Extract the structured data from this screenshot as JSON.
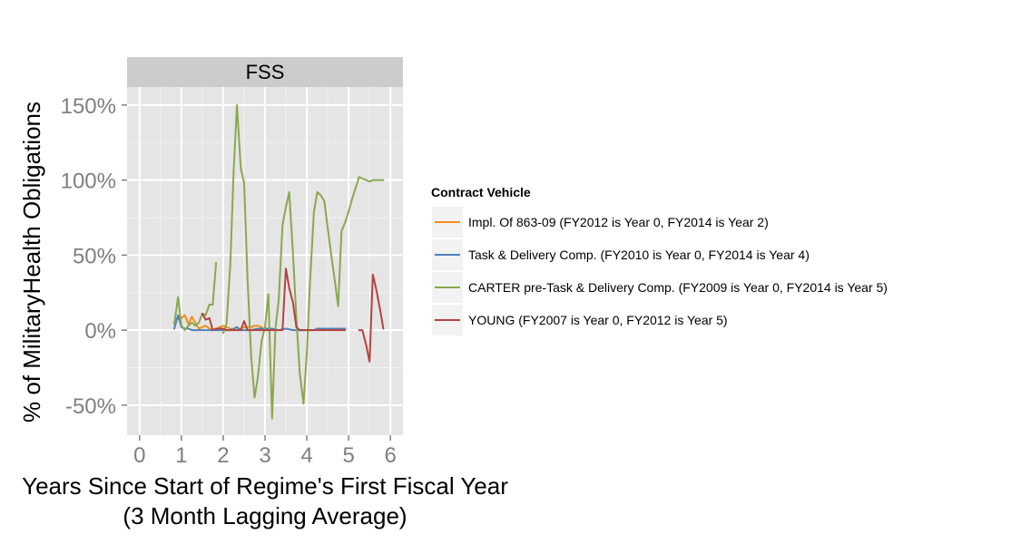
{
  "chart_data": {
    "type": "line",
    "facet": "FSS",
    "xlabel": "Years Since Start of Regime's First Fiscal Year",
    "xlabel_sub": "(3 Month Lagging Average)",
    "ylabel": "% of MilitaryHealth Obligations",
    "xlim": [
      -0.3,
      6.3
    ],
    "ylim": [
      -70,
      162
    ],
    "x_ticks": [
      0,
      1,
      2,
      3,
      4,
      5,
      6
    ],
    "y_ticks": [
      -50,
      0,
      50,
      100,
      150
    ],
    "y_tick_labels": [
      "-50%",
      "0%",
      "50%",
      "100%",
      "150%"
    ],
    "grid": true,
    "legend": {
      "title": "Contract Vehicle",
      "position": "right"
    },
    "series": [
      {
        "name": "Impl. Of 863-09 (FY2012 is Year 0, FY2014 is Year 2)",
        "color": "#f28e1c",
        "segments": [
          [
            [
              0.83,
              5
            ],
            [
              0.92,
              8
            ],
            [
              1.0,
              8
            ],
            [
              1.08,
              10
            ],
            [
              1.17,
              4
            ],
            [
              1.25,
              9
            ],
            [
              1.33,
              5
            ],
            [
              1.42,
              1
            ],
            [
              1.5,
              2
            ],
            [
              1.58,
              3
            ],
            [
              1.67,
              1
            ],
            [
              1.75,
              0
            ],
            [
              1.83,
              1
            ],
            [
              1.92,
              2
            ],
            [
              2.0,
              3
            ],
            [
              2.08,
              2
            ],
            [
              2.17,
              1
            ],
            [
              2.25,
              0
            ],
            [
              2.33,
              0
            ],
            [
              2.42,
              1
            ],
            [
              2.5,
              2
            ],
            [
              2.58,
              2
            ],
            [
              2.67,
              2
            ],
            [
              2.75,
              3
            ],
            [
              2.83,
              3
            ],
            [
              2.92,
              2
            ]
          ]
        ]
      },
      {
        "name": "Task & Delivery Comp. (FY2010 is Year 0, FY2014 is Year 4)",
        "color": "#4f81bd",
        "segments": [
          [
            [
              0.83,
              1
            ],
            [
              0.92,
              10
            ],
            [
              1.0,
              2
            ],
            [
              1.08,
              1
            ],
            [
              1.17,
              1
            ],
            [
              1.25,
              0
            ],
            [
              1.33,
              0
            ],
            [
              1.5,
              0
            ],
            [
              1.67,
              0
            ],
            [
              1.83,
              0
            ],
            [
              2.0,
              0
            ],
            [
              2.17,
              0
            ],
            [
              2.25,
              1
            ],
            [
              2.33,
              2
            ],
            [
              2.42,
              0
            ],
            [
              2.5,
              0
            ],
            [
              2.67,
              0
            ],
            [
              2.83,
              1
            ],
            [
              3.0,
              1
            ],
            [
              3.17,
              1
            ],
            [
              3.33,
              0
            ],
            [
              3.5,
              1
            ],
            [
              3.67,
              0
            ],
            [
              3.83,
              0
            ],
            [
              4.0,
              0
            ],
            [
              4.17,
              0
            ],
            [
              4.25,
              1
            ],
            [
              4.33,
              1
            ],
            [
              4.5,
              1
            ],
            [
              4.67,
              1
            ],
            [
              4.83,
              1
            ],
            [
              4.92,
              1
            ]
          ]
        ]
      },
      {
        "name": "CARTER pre-Task & Delivery Comp. (FY2009 is Year 0, FY2014 is Year 5)",
        "color": "#8aa750",
        "segments": [
          [
            [
              0.83,
              4
            ],
            [
              0.92,
              22
            ],
            [
              1.0,
              3
            ],
            [
              1.08,
              0
            ],
            [
              1.17,
              3
            ],
            [
              1.25,
              5
            ],
            [
              1.33,
              3
            ],
            [
              1.42,
              5
            ],
            [
              1.5,
              11
            ],
            [
              1.58,
              10
            ],
            [
              1.67,
              17
            ],
            [
              1.75,
              17
            ],
            [
              1.83,
              45
            ]
          ],
          [
            [
              2.0,
              -2
            ],
            [
              2.08,
              4
            ],
            [
              2.17,
              44
            ],
            [
              2.25,
              107
            ],
            [
              2.33,
              150
            ],
            [
              2.42,
              108
            ],
            [
              2.5,
              98
            ],
            [
              2.58,
              35
            ],
            [
              2.67,
              -18
            ],
            [
              2.75,
              -45
            ],
            [
              2.83,
              -31
            ],
            [
              2.92,
              -7
            ],
            [
              3.0,
              2
            ],
            [
              3.08,
              24
            ],
            [
              3.17,
              -59
            ],
            [
              3.25,
              1
            ],
            [
              3.33,
              21
            ],
            [
              3.42,
              70
            ],
            [
              3.5,
              82
            ],
            [
              3.58,
              92
            ],
            [
              3.67,
              50
            ],
            [
              3.75,
              9
            ],
            [
              3.83,
              -28
            ],
            [
              3.92,
              -49
            ],
            [
              4.0,
              -15
            ],
            [
              4.08,
              33
            ],
            [
              4.17,
              79
            ],
            [
              4.25,
              92
            ],
            [
              4.33,
              90
            ],
            [
              4.42,
              86
            ],
            [
              4.5,
              68
            ],
            [
              4.58,
              51
            ],
            [
              4.67,
              33
            ],
            [
              4.75,
              16
            ],
            [
              4.83,
              66
            ],
            [
              4.92,
              72
            ],
            [
              5.0,
              79
            ],
            [
              5.08,
              87
            ],
            [
              5.17,
              95
            ],
            [
              5.25,
              102
            ],
            [
              5.33,
              101
            ],
            [
              5.42,
              100
            ],
            [
              5.5,
              99
            ],
            [
              5.58,
              100
            ],
            [
              5.67,
              100
            ],
            [
              5.75,
              100
            ],
            [
              5.83,
              100
            ]
          ]
        ]
      },
      {
        "name": "YOUNG (FY2007 is Year 0, FY2012 is Year 5)",
        "color": "#b4433c",
        "segments": [
          [
            [
              1.5,
              11
            ],
            [
              1.58,
              7
            ],
            [
              1.67,
              8
            ],
            [
              1.75,
              0
            ],
            [
              1.83,
              1
            ],
            [
              1.92,
              1
            ],
            [
              2.0,
              1
            ],
            [
              2.08,
              0
            ],
            [
              2.17,
              0
            ],
            [
              2.25,
              0
            ],
            [
              2.33,
              0
            ],
            [
              2.42,
              0
            ],
            [
              2.5,
              6
            ],
            [
              2.58,
              0
            ],
            [
              2.67,
              0
            ],
            [
              2.75,
              0
            ],
            [
              2.83,
              0
            ],
            [
              3.0,
              0
            ],
            [
              3.17,
              0
            ],
            [
              3.33,
              0
            ],
            [
              3.42,
              0
            ],
            [
              3.5,
              41
            ],
            [
              3.58,
              28
            ],
            [
              3.67,
              18
            ],
            [
              3.75,
              2
            ],
            [
              3.83,
              0
            ],
            [
              4.0,
              0
            ],
            [
              4.17,
              0
            ],
            [
              4.33,
              0
            ],
            [
              4.5,
              0
            ],
            [
              4.67,
              0
            ],
            [
              4.83,
              0
            ],
            [
              4.92,
              0
            ]
          ],
          [
            [
              5.25,
              0
            ],
            [
              5.33,
              0
            ],
            [
              5.42,
              -10
            ],
            [
              5.5,
              -21
            ],
            [
              5.58,
              37
            ],
            [
              5.67,
              26
            ],
            [
              5.75,
              14
            ],
            [
              5.83,
              1
            ]
          ]
        ]
      }
    ]
  }
}
